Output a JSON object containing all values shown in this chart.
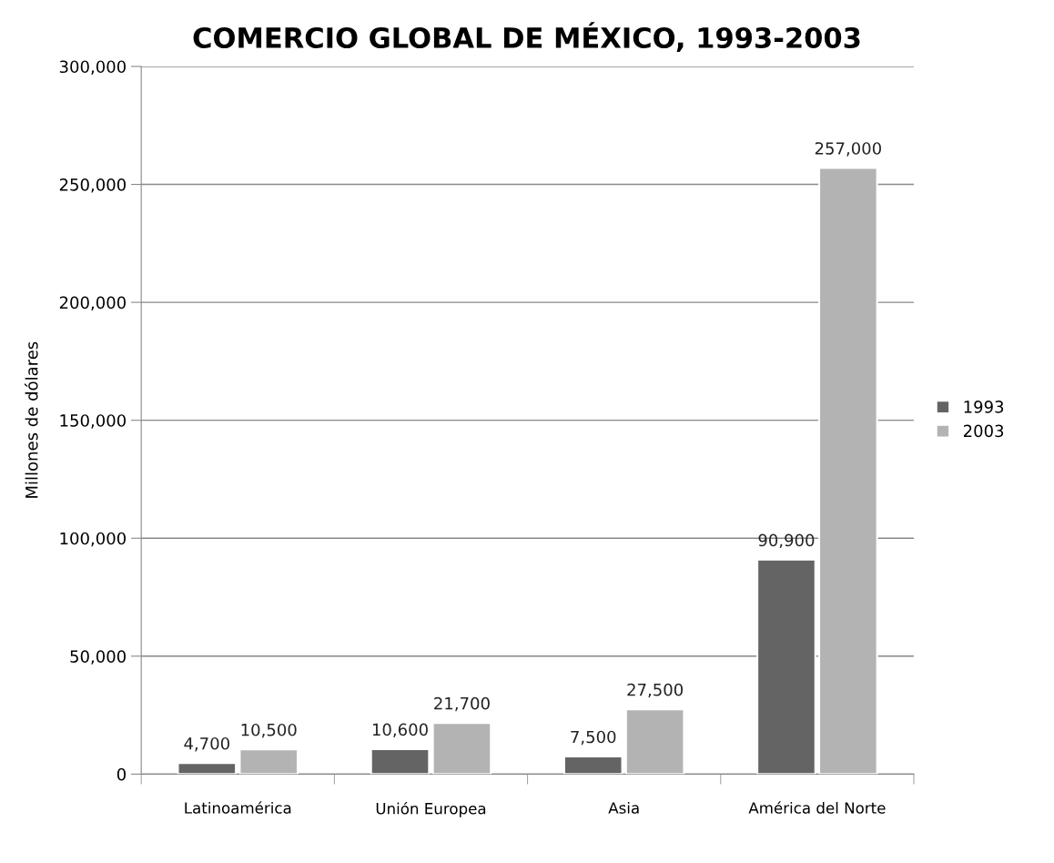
{
  "chart_data": {
    "type": "bar",
    "title": "COMERCIO GLOBAL DE MÉXICO, 1993-2003",
    "ylabel": "Millones de dólares",
    "categories": [
      "Latinoamérica",
      "Unión Europea",
      "Asia",
      "América del Norte"
    ],
    "series": [
      {
        "name": "1993",
        "color": "#646464",
        "values": [
          4700,
          10600,
          7500,
          90900
        ],
        "value_labels": [
          "4,700",
          "10,600",
          "7,500",
          "90,900"
        ]
      },
      {
        "name": "2003",
        "color": "#b3b3b3",
        "values": [
          10500,
          21700,
          27500,
          257000
        ],
        "value_labels": [
          "10,500",
          "21,700",
          "27,500",
          "257,000"
        ]
      }
    ],
    "ylim": [
      0,
      300000
    ],
    "yticks": [
      {
        "value": 0,
        "label": "0"
      },
      {
        "value": 50000,
        "label": "50,000"
      },
      {
        "value": 100000,
        "label": "100,000"
      },
      {
        "value": 150000,
        "label": "150,000"
      },
      {
        "value": 200000,
        "label": "200,000"
      },
      {
        "value": 250000,
        "label": "250,000"
      },
      {
        "value": 300000,
        "label": "300,000"
      }
    ],
    "grid": "y",
    "legend": "right"
  }
}
